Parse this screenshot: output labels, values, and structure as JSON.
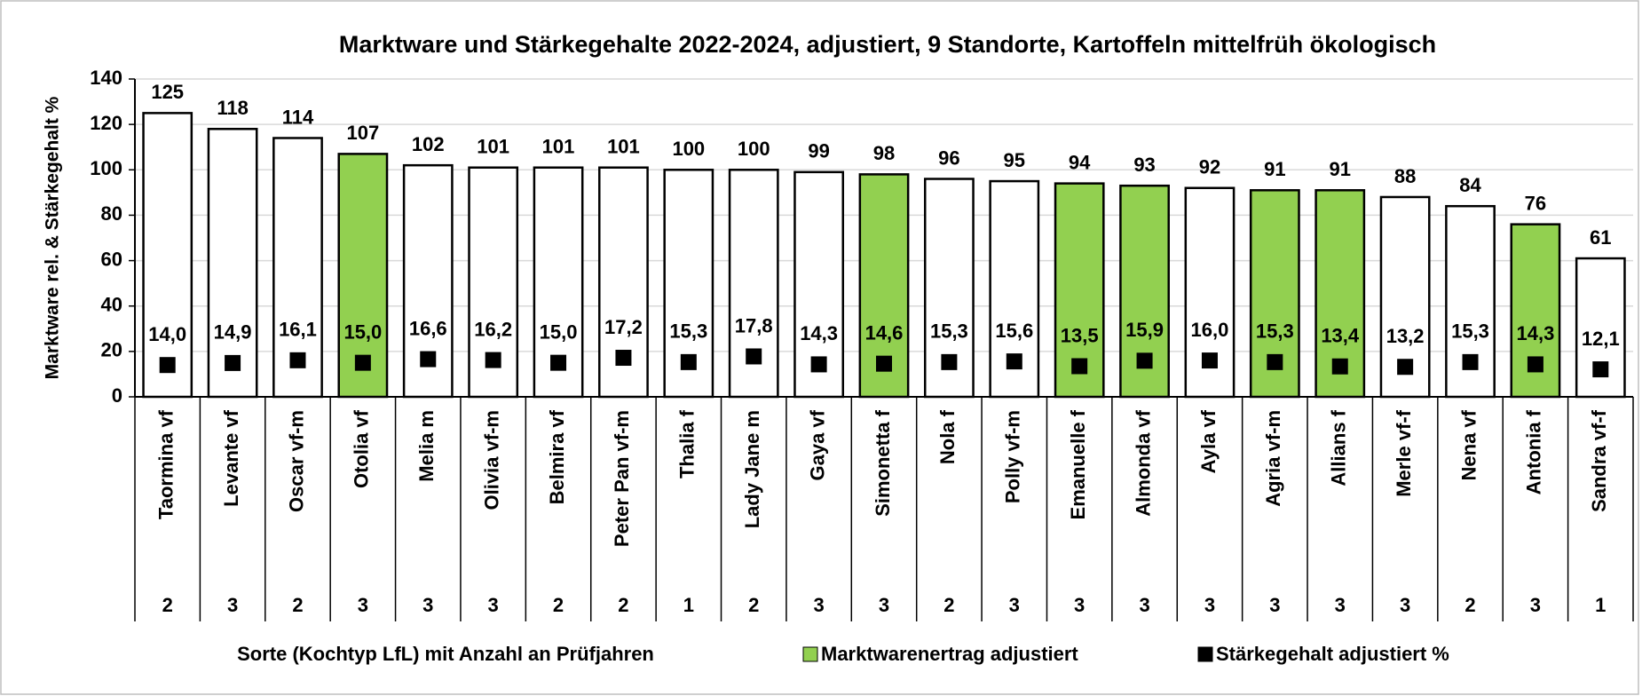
{
  "chart_data": {
    "type": "bar",
    "title": "Marktware und Stärkegehalte 2022-2024, adjustiert, 9 Standorte, Kartoffeln mittelfrüh ökologisch",
    "y_label": "Marktware rel. & Stärkegehalt %",
    "x_label": "Sorte (Kochtyp LfL) mit Anzahl an Prüfjahren",
    "categories": [
      "Taormina vf",
      "Levante vf",
      "Oscar vf-m",
      "Otolia vf",
      "Melia m",
      "Olivia vf-m",
      "Belmira vf",
      "Peter Pan vf-m",
      "Thalia f",
      "Lady Jane m",
      "Gaya vf",
      "Simonetta f",
      "Nola f",
      "Polly vf-m",
      "Emanuelle f",
      "Almonda vf",
      "Ayla vf",
      "Agria vf-m",
      "Allians f",
      "Merle vf-f",
      "Nena vf",
      "Antonia f",
      "Sandra vf-f"
    ],
    "years": [
      2,
      3,
      2,
      3,
      3,
      3,
      2,
      2,
      1,
      2,
      3,
      3,
      2,
      3,
      3,
      3,
      3,
      3,
      3,
      3,
      2,
      3,
      1
    ],
    "series": [
      {
        "name": "Marktwarenertrag adjustiert",
        "color": "#92d050",
        "colors": [
          "#ffffff",
          "#ffffff",
          "#ffffff",
          "#92d050",
          "#ffffff",
          "#ffffff",
          "#ffffff",
          "#ffffff",
          "#ffffff",
          "#ffffff",
          "#ffffff",
          "#92d050",
          "#ffffff",
          "#ffffff",
          "#92d050",
          "#92d050",
          "#ffffff",
          "#92d050",
          "#92d050",
          "#ffffff",
          "#ffffff",
          "#92d050",
          "#ffffff"
        ],
        "values": [
          125,
          118,
          114,
          107,
          102,
          101,
          101,
          101,
          100,
          100,
          99,
          98,
          96,
          95,
          94,
          93,
          92,
          91,
          91,
          88,
          84,
          76,
          61
        ]
      },
      {
        "name": "Stärkegehalt adjustiert %",
        "color": "#000000",
        "type": "scatter",
        "values": [
          14.0,
          14.9,
          16.1,
          15.0,
          16.6,
          16.2,
          15.0,
          17.2,
          15.3,
          17.8,
          14.3,
          14.6,
          15.3,
          15.6,
          13.5,
          15.9,
          16.0,
          15.3,
          13.4,
          13.2,
          15.3,
          14.3,
          12.1
        ],
        "value_labels": [
          "14,0",
          "14,9",
          "16,1",
          "15,0",
          "16,6",
          "16,2",
          "15,0",
          "17,2",
          "15,3",
          "17,8",
          "14,3",
          "14,6",
          "15,3",
          "15,6",
          "13,5",
          "15,9",
          "16,0",
          "15,3",
          "13,4",
          "13,2",
          "15,3",
          "14,3",
          "12,1"
        ]
      }
    ],
    "ylim": [
      0,
      140
    ],
    "yticks": [
      0,
      20,
      40,
      60,
      80,
      100,
      120,
      140
    ],
    "grid": true
  }
}
